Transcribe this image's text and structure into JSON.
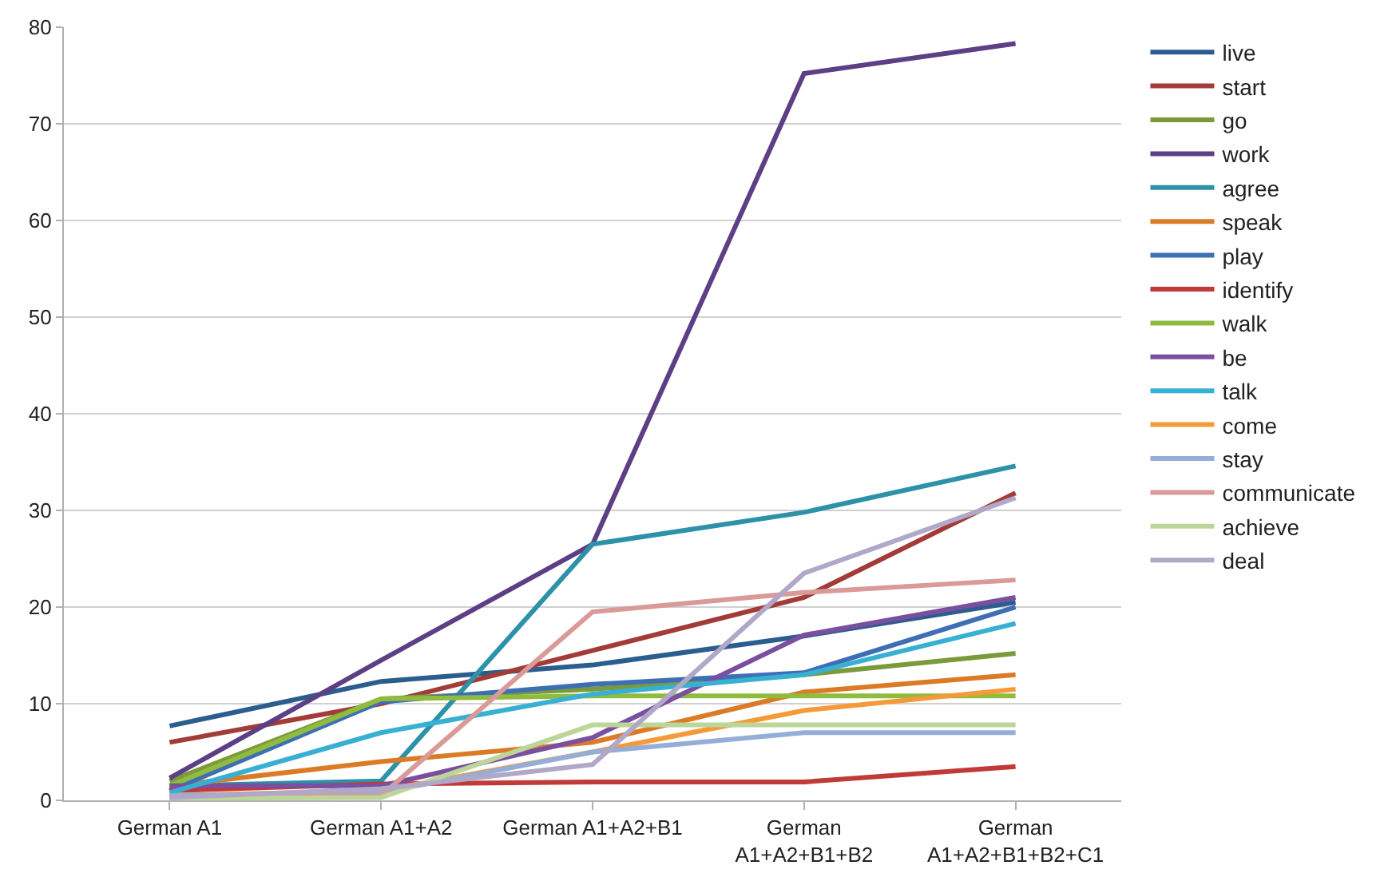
{
  "chart_data": {
    "type": "line",
    "categories": [
      "German A1",
      "German A1+A2",
      "German A1+A2+B1",
      "German\nA1+A2+B1+B2",
      "German\nA1+A2+B1+B2+C1"
    ],
    "ylim": [
      0,
      80
    ],
    "yticks": [
      0,
      10,
      20,
      30,
      40,
      50,
      60,
      70,
      80
    ],
    "grid": "y",
    "legend": "right",
    "marker": "none",
    "line_style": "solid",
    "series": [
      {
        "name": "live",
        "color": "#2c5d8f",
        "values": [
          7.7,
          12.3,
          14,
          17,
          20.5
        ]
      },
      {
        "name": "start",
        "color": "#a33b38",
        "values": [
          6,
          10,
          15.5,
          21,
          31.8
        ]
      },
      {
        "name": "go",
        "color": "#7b9a3b",
        "values": [
          2,
          10.5,
          11.5,
          13,
          15.2
        ]
      },
      {
        "name": "work",
        "color": "#5d3f86",
        "values": [
          2.3,
          14.5,
          26.5,
          75.2,
          78.3
        ]
      },
      {
        "name": "agree",
        "color": "#2d92a8",
        "values": [
          1.5,
          2,
          26.5,
          29.8,
          34.6
        ]
      },
      {
        "name": "speak",
        "color": "#db7b26",
        "values": [
          1.5,
          4,
          6,
          11.2,
          13
        ]
      },
      {
        "name": "play",
        "color": "#3e6fb5",
        "values": [
          1,
          10.2,
          12,
          13.2,
          20
        ]
      },
      {
        "name": "identify",
        "color": "#c03a37",
        "values": [
          1,
          1.7,
          1.9,
          1.9,
          3.5
        ]
      },
      {
        "name": "walk",
        "color": "#8fbc3f",
        "values": [
          1.5,
          10.5,
          10.8,
          10.8,
          10.8
        ]
      },
      {
        "name": "be",
        "color": "#7a4fa0",
        "values": [
          1.5,
          1.5,
          6.5,
          17.1,
          21
        ]
      },
      {
        "name": "talk",
        "color": "#38b0d3",
        "values": [
          0.8,
          7,
          11,
          13,
          18.3
        ]
      },
      {
        "name": "come",
        "color": "#f59a38",
        "values": [
          0.5,
          1,
          5,
          9.3,
          11.5
        ]
      },
      {
        "name": "stay",
        "color": "#95aed8",
        "values": [
          0.5,
          0.8,
          5,
          7,
          7
        ]
      },
      {
        "name": "communicate",
        "color": "#d99a98",
        "values": [
          0.3,
          0.5,
          19.5,
          21.5,
          22.8
        ]
      },
      {
        "name": "achieve",
        "color": "#bcd69a",
        "values": [
          0.2,
          0.3,
          7.8,
          7.8,
          7.8
        ]
      },
      {
        "name": "deal",
        "color": "#b1a7c9",
        "values": [
          0.3,
          1.2,
          3.7,
          23.5,
          31.3
        ]
      }
    ]
  }
}
